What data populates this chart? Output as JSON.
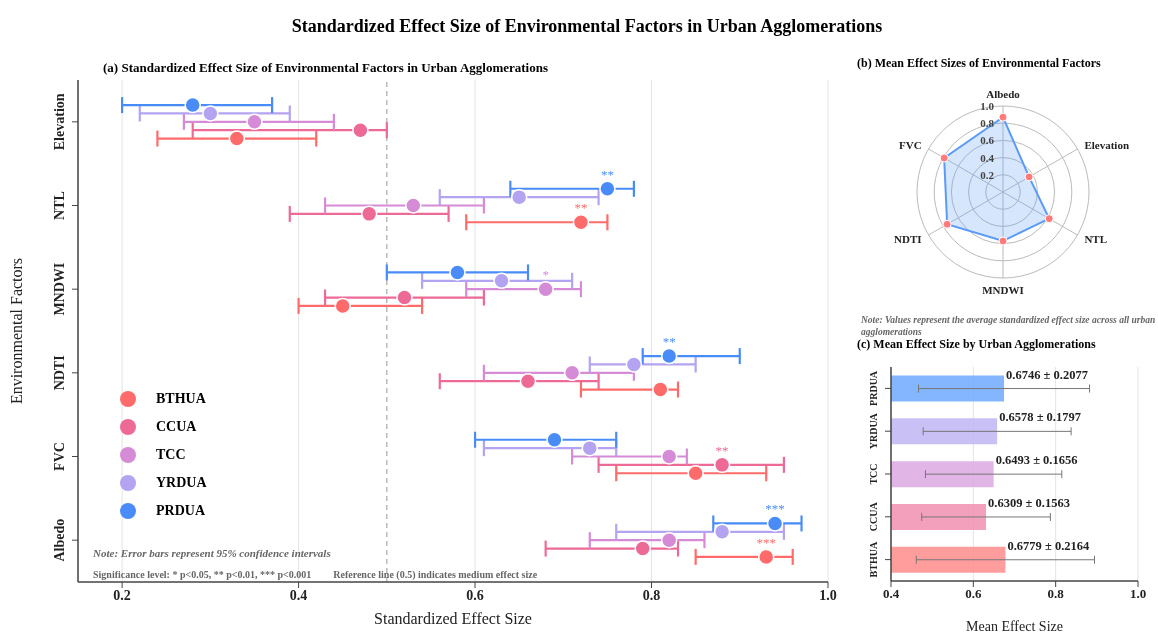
{
  "chart_data": [
    {
      "type": "scatter",
      "orientation": "horizontal",
      "title": "Standardized Effect Size of Environmental Factors in Urban Agglomerations",
      "subtitle": "(a) Standardized Effect Size of Environmental Factors in Urban Agglomerations",
      "xlabel": "Standardized Effect Size",
      "ylabel": "Environmental Factors",
      "categories": [
        "Elevation",
        "NTL",
        "MNDWI",
        "NDTI",
        "FVC",
        "Albedo"
      ],
      "xlim": [
        0.15,
        1.0
      ],
      "xticks": [
        0.2,
        0.4,
        0.6,
        0.8,
        {
          "value": 1,
          "label": "1.0"
        }
      ],
      "grid": "x",
      "legend": "bottom left",
      "marker": "circle",
      "ref_lines": [
        {
          "axis": "x",
          "value": 0.5,
          "color": "#aaaaaa",
          "line_style": "dashed"
        }
      ],
      "annotations": [
        "Note: Error bars represent 95% confidence intervals",
        "Significance level: * p<0.05, ** p<0.01, *** p<0.001",
        "Reference line (0.5) indicates medium effect size"
      ],
      "series": [
        {
          "name": "BTHUA",
          "color": "#ff6b6b",
          "values": [
            0.33,
            0.72,
            0.45,
            0.81,
            0.85,
            0.93
          ],
          "errors": [
            [
              0.24,
              0.42
            ],
            [
              0.59,
              0.75
            ],
            [
              0.4,
              0.54
            ],
            [
              0.72,
              0.83
            ],
            [
              0.76,
              0.93
            ],
            [
              0.85,
              0.96
            ]
          ],
          "value_labels": [
            null,
            "**",
            null,
            null,
            null,
            "***"
          ]
        },
        {
          "name": "CCUA",
          "color": "#ee6a96",
          "values": [
            0.47,
            0.48,
            0.52,
            0.66,
            0.88,
            0.79
          ],
          "errors": [
            [
              0.28,
              0.5
            ],
            [
              0.39,
              0.57
            ],
            [
              0.43,
              0.61
            ],
            [
              0.56,
              0.74
            ],
            [
              0.74,
              0.95
            ],
            [
              0.68,
              0.83
            ]
          ],
          "value_labels": [
            null,
            null,
            null,
            null,
            "**",
            null
          ]
        },
        {
          "name": "TCC",
          "color": "#d68bd6",
          "values": [
            0.35,
            0.53,
            0.68,
            0.71,
            0.82,
            0.82
          ],
          "errors": [
            [
              0.27,
              0.44
            ],
            [
              0.43,
              0.61
            ],
            [
              0.59,
              0.72
            ],
            [
              0.61,
              0.78
            ],
            [
              0.71,
              0.84
            ],
            [
              0.73,
              0.86
            ]
          ],
          "value_labels": [
            null,
            null,
            "*",
            null,
            null,
            null
          ]
        },
        {
          "name": "YRDUA",
          "color": "#b3a3f0",
          "values": [
            0.3,
            0.65,
            0.63,
            0.78,
            0.73,
            0.88
          ],
          "errors": [
            [
              0.22,
              0.39
            ],
            [
              0.56,
              0.74
            ],
            [
              0.54,
              0.71
            ],
            [
              0.73,
              0.85
            ],
            [
              0.61,
              0.76
            ],
            [
              0.76,
              0.95
            ]
          ]
        },
        {
          "name": "PRDUA",
          "color": "#4a8cf7",
          "values": [
            0.28,
            0.75,
            0.58,
            0.82,
            0.69,
            0.94
          ],
          "errors": [
            [
              0.2,
              0.37
            ],
            [
              0.64,
              0.78
            ],
            [
              0.5,
              0.66
            ],
            [
              0.79,
              0.9
            ],
            [
              0.6,
              0.76
            ],
            [
              0.87,
              0.97
            ]
          ],
          "value_labels": [
            null,
            "**",
            null,
            "**",
            null,
            "***"
          ]
        }
      ]
    },
    {
      "type": "radar",
      "title": "(b) Mean Effect Sizes of Environmental Factors",
      "categories": [
        "Albedo",
        "Elevation",
        "NTL",
        "MNDWI",
        "NDTI",
        "FVC"
      ],
      "ylim": [
        0,
        1
      ],
      "yticks": [
        0.2,
        0.4,
        0.6,
        0.8,
        {
          "value": 1,
          "label": "1.0"
        }
      ],
      "grid": true,
      "marker": "circle",
      "annotations": [
        "Note:  Values represent the average standardized effect size across all urban agglomerations"
      ],
      "series": [
        {
          "color": "#5b9bf5",
          "values": [
            0.87,
            0.35,
            0.62,
            0.57,
            0.75,
            0.79
          ]
        }
      ]
    },
    {
      "type": "bar",
      "orientation": "horizontal",
      "title": "(c) Mean Effect Size by Urban Agglomerations",
      "xlabel": "Mean Effect Size",
      "categories": [
        "PRDUA",
        "YRDUA",
        "TCC",
        "CCUA",
        "BTHUA"
      ],
      "values": [
        0.6746,
        0.6578,
        0.6493,
        0.6309,
        0.6779
      ],
      "errors": [
        0.2077,
        0.1797,
        0.1656,
        0.1563,
        0.2164
      ],
      "value_labels": [
        "0.6746 ± 0.2077",
        "0.6578 ± 0.1797",
        "0.6493 ± 0.1656",
        "0.6309 ± 0.1563",
        "0.6779 ± 0.2164"
      ],
      "colors": [
        "#6fa8ff",
        "#c0b6f5",
        "#dca8e0",
        "#f08fb0",
        "#ff8c8c"
      ],
      "xlim": [
        0.4,
        1.0
      ],
      "xticks": [
        0.4,
        0.6,
        0.8,
        {
          "value": 1,
          "label": "1.0"
        }
      ],
      "grid": "x"
    }
  ]
}
